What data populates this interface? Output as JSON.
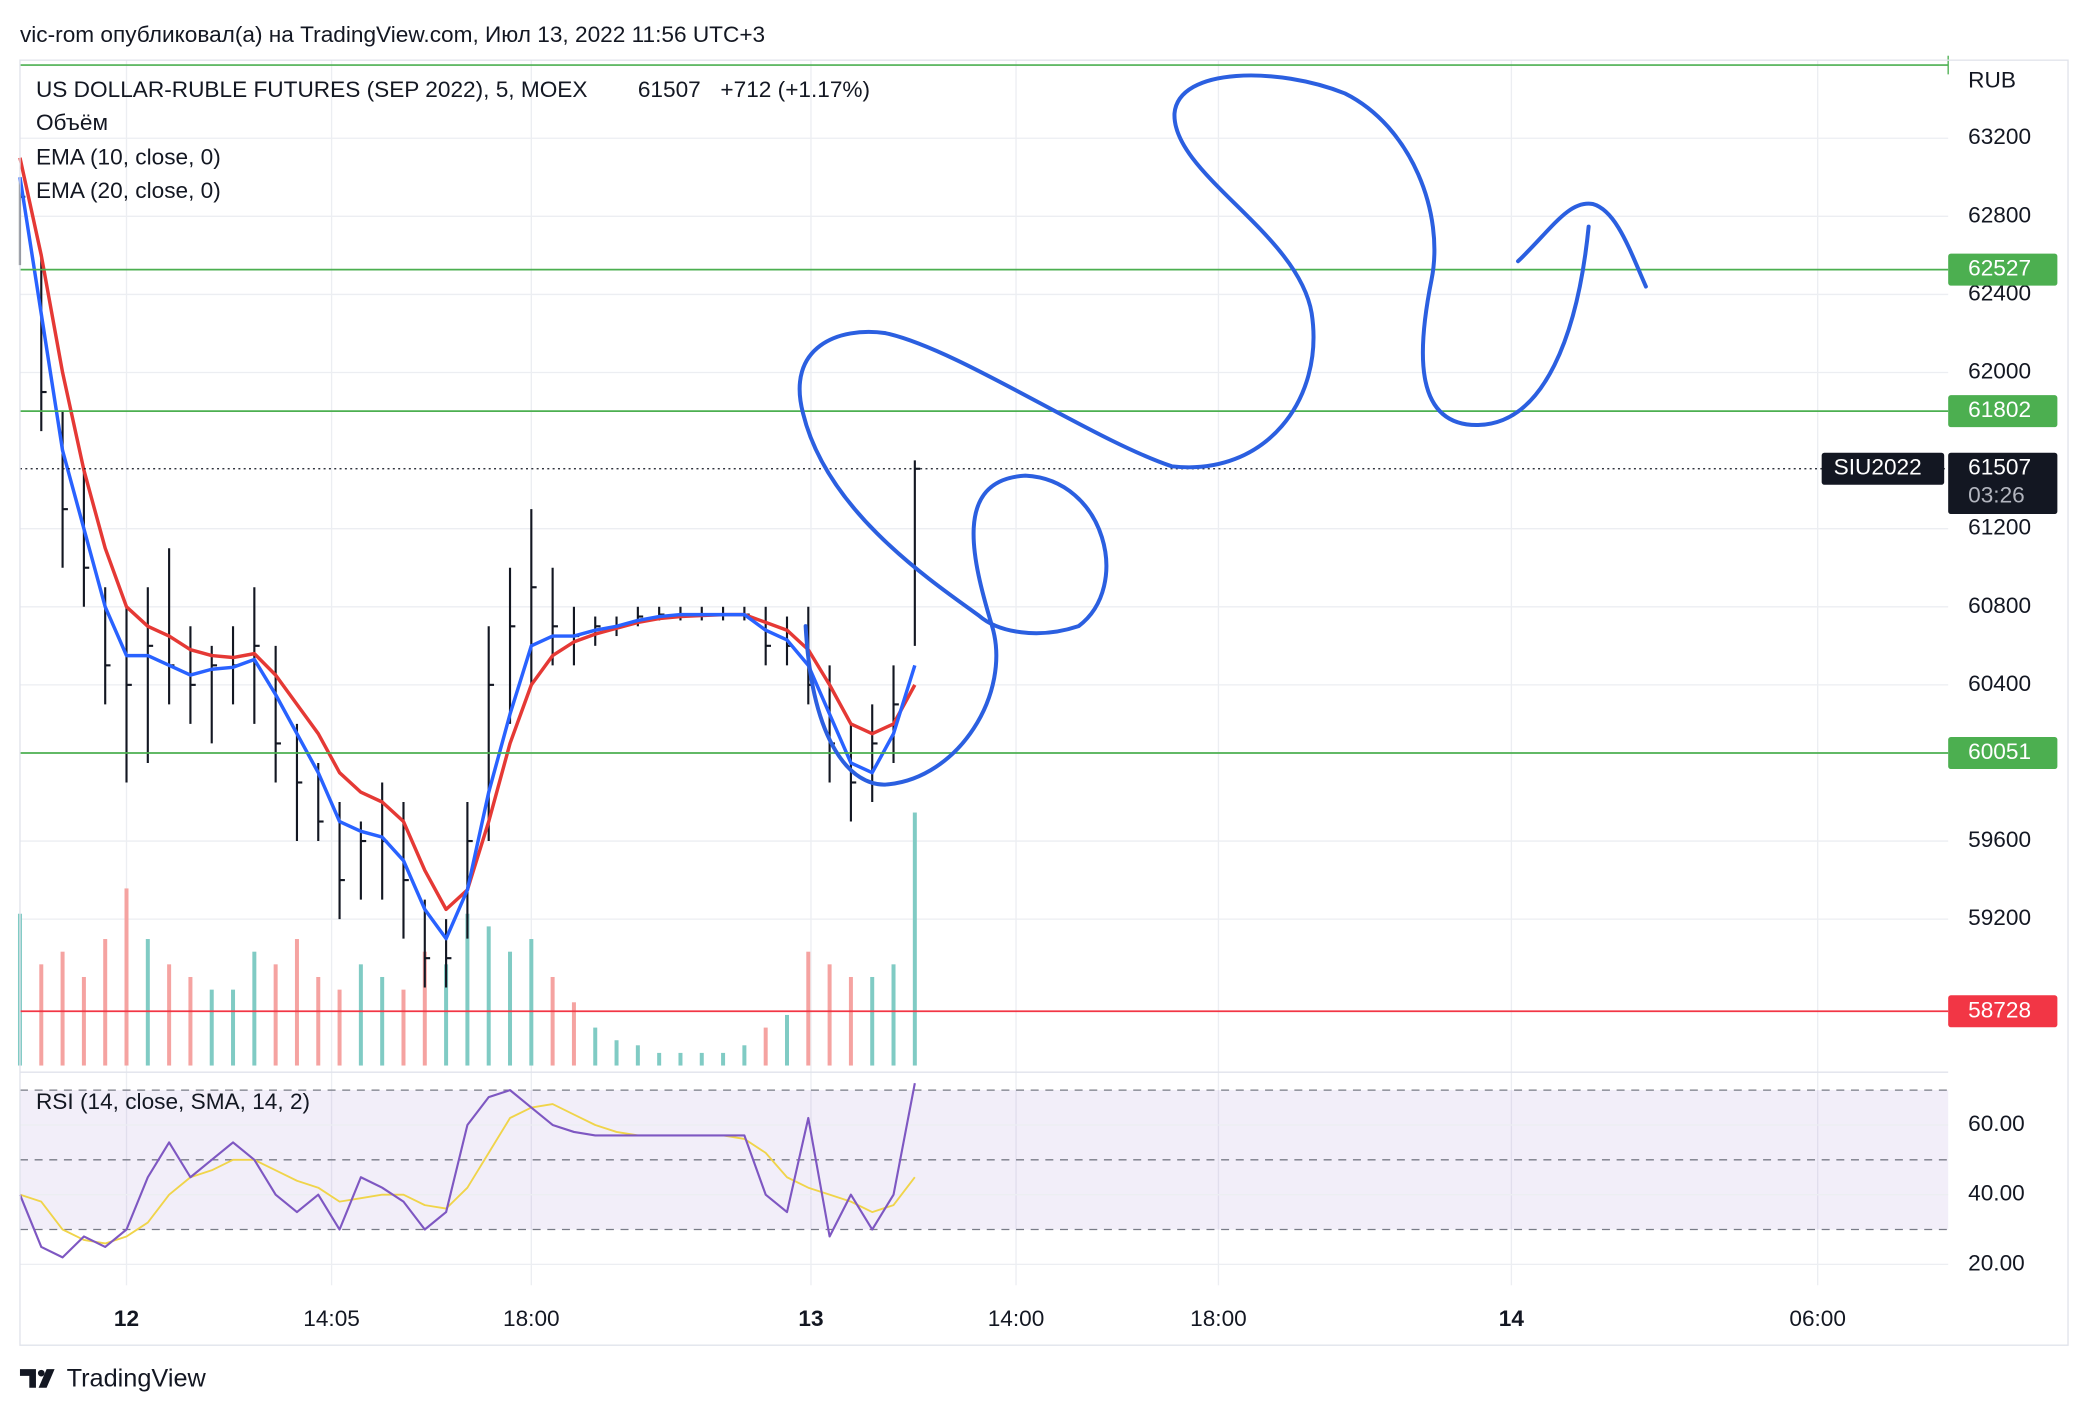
{
  "header": {
    "byline": "vic-rom опубликовал(а) на TradingView.com, Июл 13, 2022 11:56 UTC+3"
  },
  "footer": {
    "brand": "TradingView"
  },
  "chart_data": {
    "type": "ohlc",
    "title": "US DOLLAR-RUBLE FUTURES (SEP 2022), 5, MOEX",
    "last": 61507,
    "change": "+712 (+1.17%)",
    "currency": "RUB",
    "symbol": "SIU2022",
    "countdown": "03:26",
    "bar_color": "#131722",
    "x": [
      0,
      4,
      8,
      12,
      16,
      20,
      24,
      28,
      32,
      36,
      40,
      44,
      48,
      52,
      56,
      60,
      64,
      68,
      72,
      76,
      80,
      84,
      88,
      92,
      96,
      100,
      104,
      108,
      112,
      116,
      120,
      124,
      128,
      132,
      136,
      140,
      144,
      148,
      152,
      156,
      160,
      164,
      168
    ],
    "high": [
      63000,
      62600,
      61800,
      61500,
      60900,
      60800,
      60900,
      61100,
      60700,
      60600,
      60700,
      60900,
      60600,
      60200,
      60000,
      59800,
      59700,
      59900,
      59800,
      59300,
      59200,
      59800,
      60700,
      61000,
      61300,
      61000,
      60800,
      60750,
      60750,
      60800,
      60800,
      60800,
      60800,
      60800,
      60800,
      60800,
      60750,
      60800,
      60500,
      60200,
      60300,
      60500,
      61550
    ],
    "low": [
      62550,
      61700,
      61000,
      60800,
      60300,
      59900,
      60000,
      60300,
      60200,
      60100,
      60300,
      60200,
      59900,
      59600,
      59600,
      59200,
      59300,
      59300,
      59100,
      58850,
      58850,
      59100,
      59600,
      60200,
      60400,
      60500,
      60500,
      60600,
      60650,
      60700,
      60730,
      60730,
      60730,
      60730,
      60730,
      60500,
      60500,
      60300,
      59900,
      59700,
      59800,
      60000,
      60600
    ],
    "close": [
      62900,
      61900,
      61300,
      61000,
      60500,
      60400,
      60600,
      60500,
      60400,
      60500,
      60500,
      60600,
      60100,
      59900,
      59700,
      59400,
      59600,
      59600,
      59400,
      59000,
      59000,
      59600,
      60400,
      60700,
      60900,
      60700,
      60650,
      60700,
      60700,
      60750,
      60760,
      60760,
      60760,
      60760,
      60760,
      60600,
      60600,
      60400,
      60100,
      59900,
      60100,
      60300,
      61507
    ],
    "series": [
      {
        "name": "EMA (10, close, 0)",
        "color": "#2962ff",
        "values": [
          63000,
          62300,
          61600,
          61200,
          60800,
          60550,
          60550,
          60500,
          60450,
          60480,
          60490,
          60530,
          60350,
          60150,
          59950,
          59700,
          59650,
          59620,
          59500,
          59250,
          59100,
          59350,
          59850,
          60250,
          60600,
          60650,
          60650,
          60680,
          60700,
          60730,
          60750,
          60760,
          60760,
          60760,
          60760,
          60680,
          60630,
          60500,
          60250,
          60000,
          59950,
          60150,
          60500
        ]
      },
      {
        "name": "EMA (20, close, 0)",
        "color": "#e53935",
        "values": [
          63100,
          62600,
          62000,
          61500,
          61100,
          60800,
          60700,
          60650,
          60580,
          60550,
          60540,
          60560,
          60450,
          60300,
          60150,
          59950,
          59850,
          59800,
          59700,
          59450,
          59250,
          59350,
          59700,
          60100,
          60400,
          60550,
          60620,
          60660,
          60690,
          60720,
          60740,
          60750,
          60755,
          60760,
          60760,
          60720,
          60680,
          60580,
          60400,
          60200,
          60150,
          60200,
          60400
        ]
      }
    ],
    "volume": {
      "name": "Объём",
      "up_color": "#80cbc4",
      "down_color": "#f5a3a1",
      "values": [
        60,
        40,
        45,
        35,
        50,
        70,
        50,
        40,
        35,
        30,
        30,
        45,
        40,
        50,
        35,
        30,
        40,
        35,
        30,
        45,
        40,
        60,
        55,
        45,
        50,
        35,
        25,
        15,
        10,
        8,
        5,
        5,
        5,
        5,
        8,
        15,
        20,
        45,
        40,
        35,
        35,
        40,
        100
      ]
    },
    "xlim": [
      0,
      362
    ],
    "xticks": [
      {
        "value": 20,
        "label": "12"
      },
      {
        "value": 58.5,
        "label": "14:05"
      },
      {
        "value": 96,
        "label": "18:00"
      },
      {
        "value": 148.5,
        "label": "13"
      },
      {
        "value": 187,
        "label": "14:00"
      },
      {
        "value": 225,
        "label": "18:00"
      },
      {
        "value": 280,
        "label": "14"
      },
      {
        "value": 337.5,
        "label": "06:00"
      }
    ],
    "ylim": [
      58450,
      63600
    ],
    "yticks": [
      59200,
      59600,
      60400,
      60800,
      61200,
      62000,
      62400,
      62800,
      63200
    ],
    "grid": true,
    "top_line": 63575,
    "levels": [
      {
        "value": 62527,
        "color": "#4caf50"
      },
      {
        "value": 61802,
        "color": "#4caf50"
      },
      {
        "value": 60051,
        "color": "#4caf50"
      },
      {
        "value": 58728,
        "color": "#f23645"
      }
    ],
    "rsi": {
      "name": "RSI (14, close, SMA, 14, 2)",
      "color": "#7e57c2",
      "sma_color": "#f0d44a",
      "values": [
        40,
        25,
        22,
        28,
        25,
        30,
        45,
        55,
        45,
        50,
        55,
        50,
        40,
        35,
        40,
        30,
        45,
        42,
        38,
        30,
        35,
        60,
        68,
        70,
        65,
        60,
        58,
        57,
        57,
        57,
        57,
        57,
        57,
        57,
        57,
        40,
        35,
        62,
        28,
        40,
        30,
        40,
        72
      ],
      "sma": [
        40,
        38,
        30,
        27,
        26,
        28,
        32,
        40,
        45,
        47,
        50,
        50,
        47,
        44,
        42,
        38,
        39,
        40,
        40,
        37,
        36,
        42,
        52,
        62,
        65,
        66,
        63,
        60,
        58,
        57,
        57,
        57,
        57,
        57,
        56,
        52,
        45,
        42,
        40,
        38,
        35,
        37,
        45
      ],
      "ylim": [
        14,
        74
      ],
      "yticks": [
        {
          "value": 20,
          "label": "20.00"
        },
        {
          "value": 40,
          "label": "40.00"
        },
        {
          "value": 60,
          "label": "60.00"
        }
      ],
      "bands": [
        30,
        50,
        70
      ]
    }
  }
}
